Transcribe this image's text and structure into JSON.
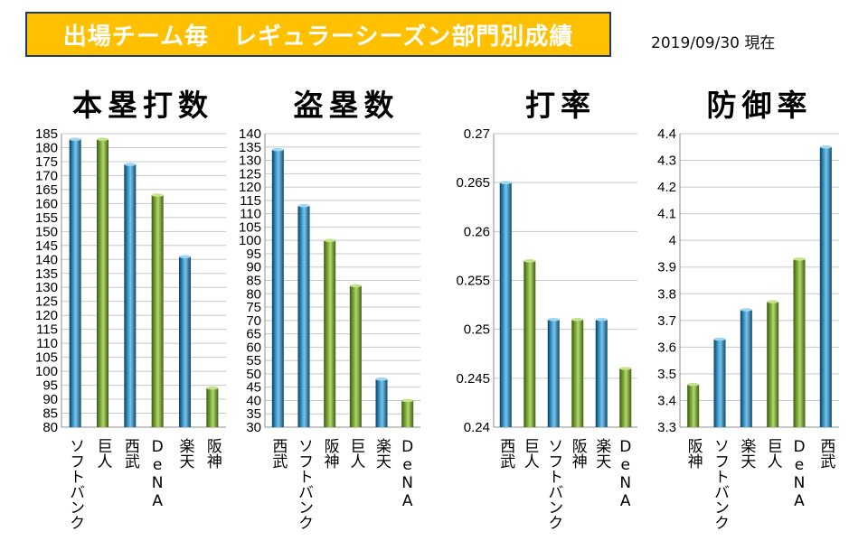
{
  "header": {
    "title": "出場チーム毎　レギュラーシーズン部門別成績",
    "as_of": "2019/09/30 現在"
  },
  "colors": {
    "blue_bar": "#2e8fc0",
    "green_bar": "#77a33a",
    "banner_bg": "#ffc000",
    "banner_border": "#1f3864"
  },
  "chart_data": [
    {
      "type": "bar",
      "title": "本塁打数",
      "categories": [
        "ソフトバンク",
        "巨人",
        "西武",
        "DeNA",
        "楽天",
        "阪神"
      ],
      "values": [
        183,
        183,
        174,
        163,
        141,
        94
      ],
      "bar_colors": [
        "blue",
        "green",
        "blue",
        "green",
        "blue",
        "green"
      ],
      "ylim": [
        80,
        185
      ],
      "ystep": 5,
      "ydecimals": 0,
      "grid": true
    },
    {
      "type": "bar",
      "title": "盗塁数",
      "categories": [
        "西武",
        "ソフトバンク",
        "阪神",
        "巨人",
        "楽天",
        "DeNA"
      ],
      "values": [
        134,
        113,
        100,
        83,
        48,
        40
      ],
      "bar_colors": [
        "blue",
        "blue",
        "green",
        "green",
        "blue",
        "green"
      ],
      "ylim": [
        30,
        140
      ],
      "ystep": 5,
      "ydecimals": 0,
      "grid": true
    },
    {
      "type": "bar",
      "title": "打率",
      "categories": [
        "西武",
        "巨人",
        "ソフトバンク",
        "阪神",
        "楽天",
        "DeNA"
      ],
      "values": [
        0.265,
        0.257,
        0.251,
        0.251,
        0.251,
        0.246
      ],
      "bar_colors": [
        "blue",
        "green",
        "blue",
        "green",
        "blue",
        "green"
      ],
      "ylim": [
        0.24,
        0.27
      ],
      "ystep": 0.005,
      "ydecimals": 3,
      "grid": true
    },
    {
      "type": "bar",
      "title": "防御率",
      "categories": [
        "阪神",
        "ソフトバンク",
        "楽天",
        "巨人",
        "DeNA",
        "西武"
      ],
      "values": [
        3.46,
        3.63,
        3.74,
        3.77,
        3.93,
        4.35
      ],
      "bar_colors": [
        "green",
        "blue",
        "blue",
        "green",
        "green",
        "blue"
      ],
      "ylim": [
        3.3,
        4.4
      ],
      "ystep": 0.1,
      "ydecimals": 1,
      "grid": true
    }
  ]
}
